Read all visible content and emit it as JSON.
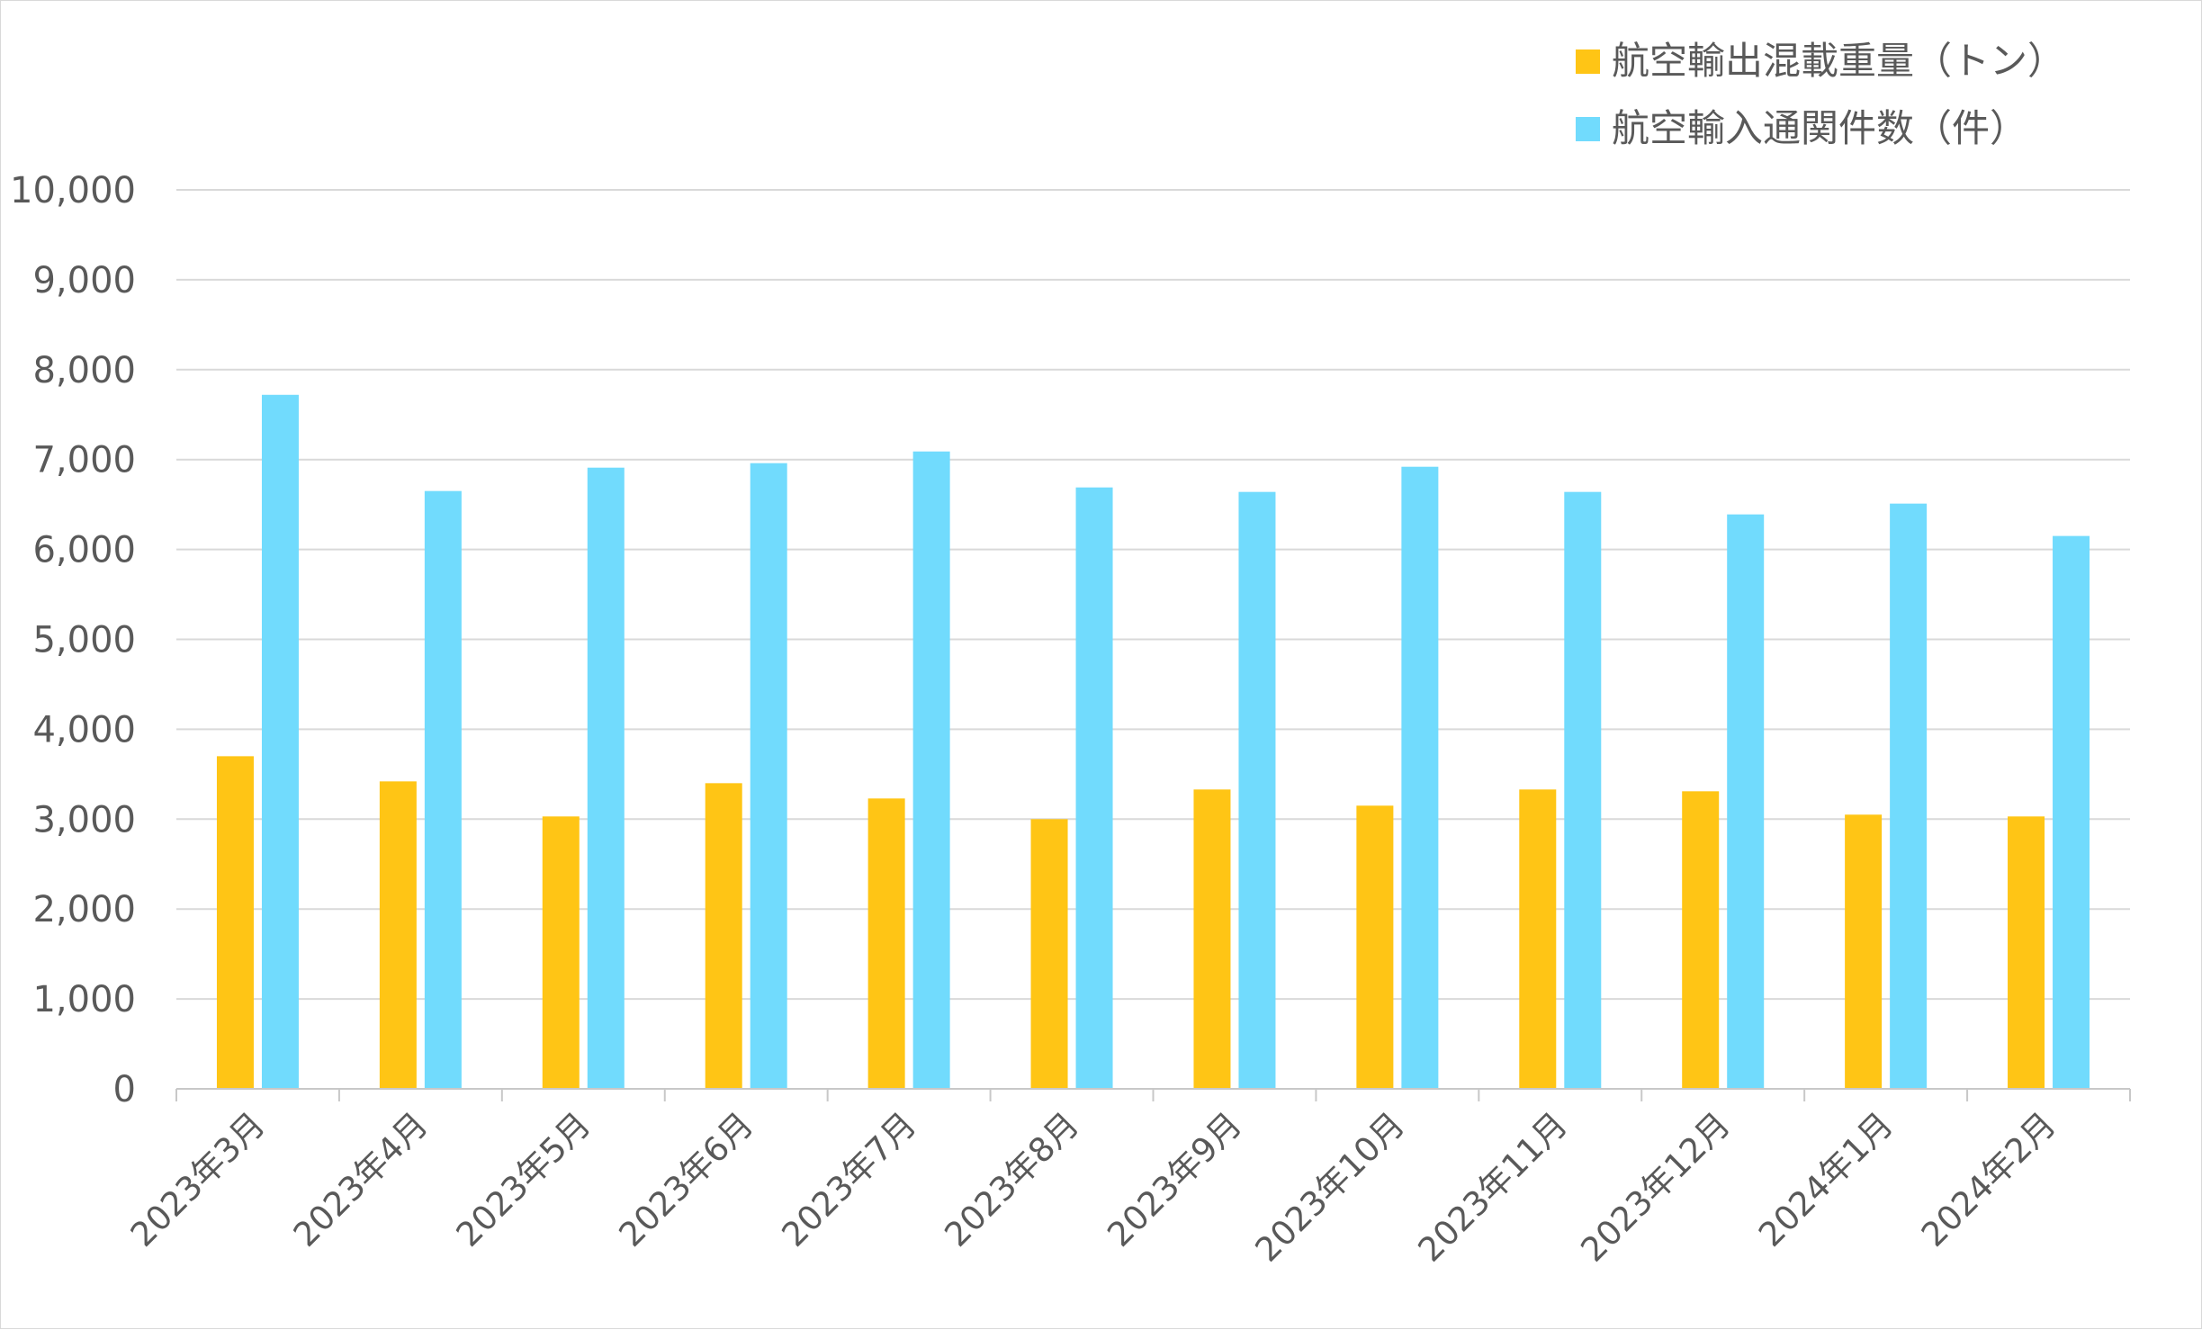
{
  "chart_data": {
    "type": "bar",
    "title": "",
    "xlabel": "",
    "ylabel": "",
    "ylim": [
      0,
      10000
    ],
    "y_ticks": [
      0,
      1000,
      2000,
      3000,
      4000,
      5000,
      6000,
      7000,
      8000,
      9000,
      10000
    ],
    "y_tick_labels": [
      "0",
      "1,000",
      "2,000",
      "3,000",
      "4,000",
      "5,000",
      "6,000",
      "7,000",
      "8,000",
      "9,000",
      "10,000"
    ],
    "grid": true,
    "legend_position": "top-right",
    "categories": [
      "2023年3月",
      "2023年4月",
      "2023年5月",
      "2023年6月",
      "2023年7月",
      "2023年8月",
      "2023年9月",
      "2023年10月",
      "2023年11月",
      "2023年12月",
      "2024年1月",
      "2024年2月"
    ],
    "series": [
      {
        "name": "航空輸出混載重量（トン）",
        "color": "#ffc515",
        "values": [
          3700,
          3420,
          3030,
          3400,
          3230,
          3000,
          3330,
          3150,
          3330,
          3310,
          3050,
          3030
        ]
      },
      {
        "name": "航空輸入通関件数（件）",
        "color": "#71dbfd",
        "values": [
          7720,
          6650,
          6910,
          6960,
          7090,
          6690,
          6640,
          6920,
          6640,
          6390,
          6510,
          6150
        ]
      }
    ]
  },
  "colors": {
    "gridline": "#d9d9d9",
    "axis": "#c8c8c8",
    "text": "#595959"
  }
}
